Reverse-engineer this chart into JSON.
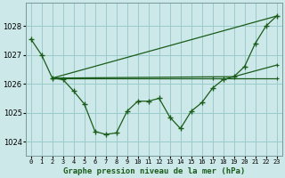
{
  "background_color": "#cce8e8",
  "grid_color": "#99cccc",
  "line_color": "#1a5c1a",
  "title": "Graphe pression niveau de la mer (hPa)",
  "ylim": [
    1023.5,
    1028.8
  ],
  "xlim": [
    -0.5,
    23.5
  ],
  "yticks": [
    1024,
    1025,
    1026,
    1027,
    1028
  ],
  "n_xticks": 24,
  "series_main": {
    "x": [
      0,
      1,
      2,
      3,
      4,
      5,
      6,
      7,
      8,
      9,
      10,
      11,
      12,
      13,
      14,
      15,
      16,
      17,
      18,
      19,
      20,
      21,
      22,
      23
    ],
    "y": [
      1027.55,
      1027.0,
      1026.2,
      1026.15,
      1025.75,
      1025.3,
      1024.35,
      1024.25,
      1024.3,
      1025.05,
      1025.4,
      1025.4,
      1025.5,
      1024.85,
      1024.45,
      1025.05,
      1025.35,
      1025.85,
      1026.15,
      1026.25,
      1026.6,
      1027.4,
      1028.0,
      1028.35
    ]
  },
  "series_lines": [
    {
      "x": [
        2,
        23
      ],
      "y": [
        1026.2,
        1028.35
      ]
    },
    {
      "x": [
        2,
        19,
        23
      ],
      "y": [
        1026.2,
        1026.25,
        1026.65
      ]
    },
    {
      "x": [
        2,
        17,
        23
      ],
      "y": [
        1026.2,
        1026.2,
        1026.2
      ]
    }
  ],
  "figsize": [
    3.2,
    2.0
  ],
  "dpi": 100
}
